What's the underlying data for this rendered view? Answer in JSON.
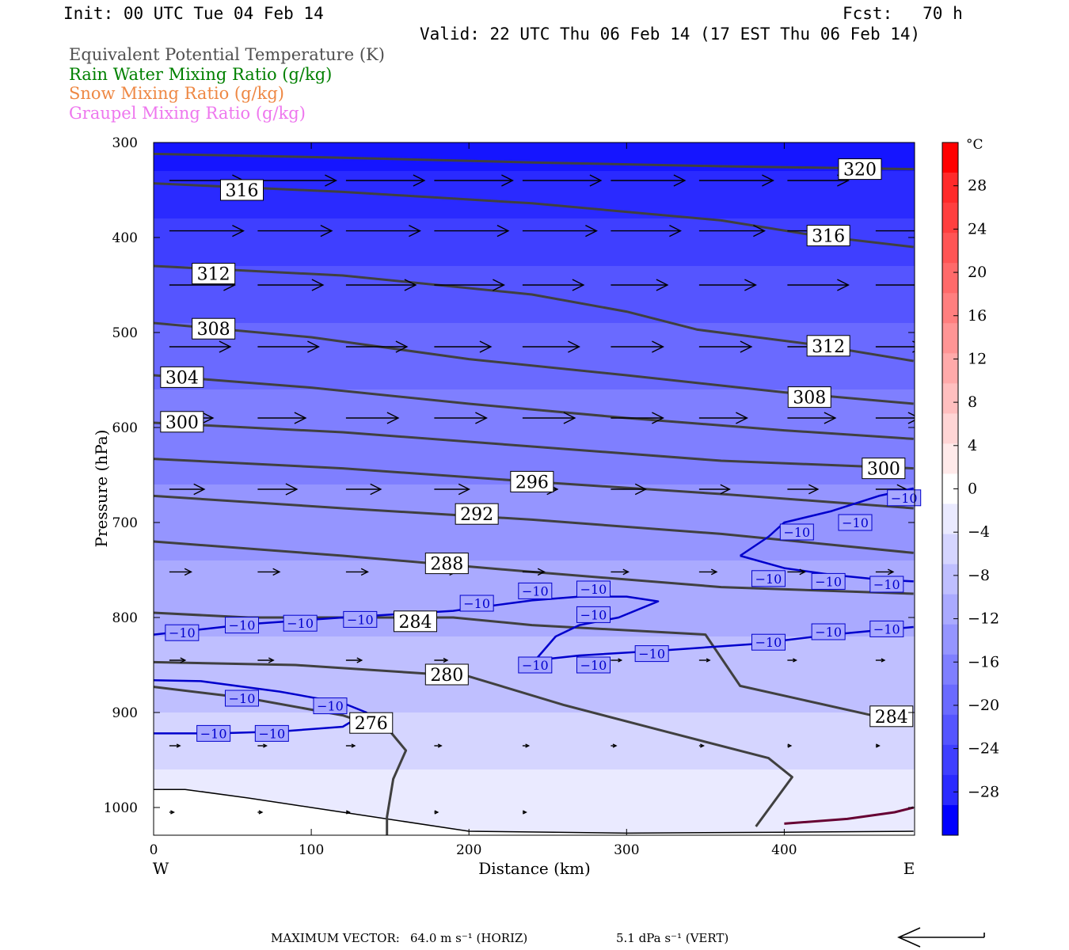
{
  "header": {
    "init": "Init: 00 UTC Tue 04 Feb 14",
    "fcst": "Fcst:   70 h",
    "valid": "Valid: 22 UTC Thu 06 Feb 14 (17 EST Thu 06 Feb 14)"
  },
  "legend": [
    {
      "label": "Equivalent Potential Temperature (K)",
      "color": "#505050"
    },
    {
      "label": "Rain Water Mixing Ratio (g/kg)",
      "color": "#008000"
    },
    {
      "label": "Snow Mixing Ratio (g/kg)",
      "color": "#ee8844"
    },
    {
      "label": "Graupel Mixing Ratio (g/kg)",
      "color": "#ee77ee"
    }
  ],
  "footer": {
    "label": "MAXIMUM VECTOR:",
    "horiz": "64.0 m s⁻¹ (HORIZ)",
    "vert": "5.1 dPa s⁻¹ (VERT)"
  },
  "chart_data": {
    "type": "cross-section",
    "xlabel": "Distance (km)",
    "ylabel": "Pressure (hPa)",
    "x_ticks": [
      0,
      100,
      200,
      300,
      400
    ],
    "y_ticks": [
      300,
      400,
      500,
      600,
      700,
      800,
      900,
      1000
    ],
    "xlim": [
      0,
      482
    ],
    "ylim": [
      300,
      1030
    ],
    "y_direction": "increasing-downward",
    "x_end_labels": {
      "left": "W",
      "right": "E"
    },
    "colorbar": {
      "unit": "°C",
      "tick_labels": [
        28,
        24,
        20,
        16,
        12,
        8,
        4,
        0,
        -4,
        -8,
        -12,
        -16,
        -20,
        -24,
        -28
      ],
      "range": [
        -32,
        32
      ],
      "colors_top_to_bottom": [
        "#ff0000",
        "#ff2a2a",
        "#ff3f3f",
        "#ff5555",
        "#ff6a6a",
        "#ff7f7f",
        "#ff9595",
        "#ffaaaa",
        "#ffbfbf",
        "#ffd5d5",
        "#ffeaea",
        "#ffffff",
        "#eaeaff",
        "#d5d5ff",
        "#bfbfff",
        "#aaaaff",
        "#9595ff",
        "#7f7fff",
        "#6a6aff",
        "#5555ff",
        "#3f3fff",
        "#2a2aff",
        "#0000ff"
      ]
    },
    "temperature_bands_top_to_bottom": [
      {
        "p_top": 300,
        "p_bottom_west": 330,
        "p_bottom_east": 410,
        "color": "#0000ff"
      },
      {
        "p_top": 330,
        "p_bottom_west": 370,
        "p_bottom_east": 445,
        "color": "#1515ff"
      },
      {
        "p_top": 370,
        "p_bottom_west": 420,
        "p_bottom_east": 490,
        "color": "#2a2aff"
      },
      {
        "p_top": 420,
        "p_bottom_west": 470,
        "p_bottom_east": 540,
        "color": "#3f3fff"
      },
      {
        "p_top": 470,
        "p_bottom_west": 530,
        "p_bottom_east": 590,
        "color": "#5555ff"
      },
      {
        "p_top": 530,
        "p_bottom_west": 600,
        "p_bottom_east": 650,
        "color": "#6a6aff"
      },
      {
        "p_top": 600,
        "p_bottom_west": 700,
        "p_bottom_east": 720,
        "color": "#7f7fff"
      },
      {
        "p_top": 700,
        "p_bottom_west": 780,
        "p_bottom_east": 800,
        "color": "#9595ff"
      },
      {
        "p_top": 780,
        "p_bottom_west": 860,
        "p_bottom_east": 860,
        "color": "#aaaaff"
      },
      {
        "p_top": 860,
        "p_bottom_west": 940,
        "p_bottom_east": 920,
        "color": "#bfbfff"
      },
      {
        "p_top": 940,
        "p_bottom_west": 1000,
        "p_bottom_east": 990,
        "color": "#d5d5ff"
      },
      {
        "p_top": 1000,
        "p_bottom_west": 1030,
        "p_bottom_east": 1030,
        "color": "#eaeaff"
      }
    ],
    "theta_e_contours": [
      {
        "label": "320",
        "points": [
          [
            0,
            312
          ],
          [
            120,
            316
          ],
          [
            240,
            321
          ],
          [
            360,
            325
          ],
          [
            482,
            328
          ]
        ]
      },
      {
        "label": "316",
        "points": [
          [
            0,
            343
          ],
          [
            120,
            352
          ],
          [
            240,
            364
          ],
          [
            360,
            382
          ],
          [
            420,
            398
          ],
          [
            482,
            410
          ]
        ]
      },
      {
        "label": "312",
        "points": [
          [
            0,
            430
          ],
          [
            120,
            440
          ],
          [
            240,
            460
          ],
          [
            300,
            478
          ],
          [
            345,
            497
          ],
          [
            420,
            513
          ],
          [
            482,
            530
          ]
        ]
      },
      {
        "label": "308",
        "points": [
          [
            0,
            490
          ],
          [
            100,
            505
          ],
          [
            200,
            528
          ],
          [
            300,
            545
          ],
          [
            400,
            563
          ],
          [
            482,
            575
          ]
        ]
      },
      {
        "label": "304",
        "points": [
          [
            0,
            545
          ],
          [
            100,
            558
          ],
          [
            200,
            575
          ],
          [
            300,
            590
          ],
          [
            400,
            603
          ],
          [
            482,
            612
          ]
        ]
      },
      {
        "label": "300",
        "points": [
          [
            0,
            595
          ],
          [
            120,
            605
          ],
          [
            240,
            620
          ],
          [
            360,
            635
          ],
          [
            482,
            643
          ]
        ]
      },
      {
        "label": "296",
        "points": [
          [
            0,
            633
          ],
          [
            120,
            643
          ],
          [
            240,
            657
          ],
          [
            360,
            670
          ],
          [
            482,
            685
          ]
        ]
      },
      {
        "label": "292",
        "points": [
          [
            0,
            672
          ],
          [
            120,
            685
          ],
          [
            240,
            697
          ],
          [
            360,
            712
          ],
          [
            482,
            732
          ]
        ]
      },
      {
        "label": "288",
        "points": [
          [
            0,
            720
          ],
          [
            120,
            735
          ],
          [
            240,
            752
          ],
          [
            360,
            768
          ],
          [
            482,
            775
          ]
        ]
      },
      {
        "label": "284",
        "points": [
          [
            0,
            795
          ],
          [
            60,
            800
          ],
          [
            190,
            800
          ],
          [
            240,
            808
          ],
          [
            350,
            818
          ],
          [
            372,
            872
          ],
          [
            480,
            912
          ]
        ]
      },
      {
        "label": "280",
        "points": [
          [
            0,
            847
          ],
          [
            90,
            850
          ],
          [
            200,
            862
          ],
          [
            260,
            892
          ],
          [
            320,
            918
          ],
          [
            390,
            948
          ],
          [
            405,
            968
          ],
          [
            382,
            1020
          ]
        ]
      },
      {
        "label": "276",
        "points": [
          [
            0,
            873
          ],
          [
            60,
            885
          ],
          [
            120,
            903
          ],
          [
            150,
            920
          ],
          [
            160,
            940
          ],
          [
            152,
            970
          ],
          [
            148,
            1010
          ],
          [
            148,
            1030
          ]
        ]
      }
    ],
    "theta_e_labels": [
      {
        "text": "320",
        "x": 448,
        "p": 328
      },
      {
        "text": "316",
        "x": 56,
        "p": 350
      },
      {
        "text": "316",
        "x": 428,
        "p": 398
      },
      {
        "text": "312",
        "x": 38,
        "p": 438
      },
      {
        "text": "312",
        "x": 428,
        "p": 514
      },
      {
        "text": "308",
        "x": 38,
        "p": 496
      },
      {
        "text": "308",
        "x": 416,
        "p": 568
      },
      {
        "text": "304",
        "x": 18,
        "p": 547
      },
      {
        "text": "300",
        "x": 18,
        "p": 594
      },
      {
        "text": "300",
        "x": 463,
        "p": 643
      },
      {
        "text": "296",
        "x": 240,
        "p": 657
      },
      {
        "text": "292",
        "x": 205,
        "p": 691
      },
      {
        "text": "288",
        "x": 186,
        "p": 743
      },
      {
        "text": "284",
        "x": 166,
        "p": 804
      },
      {
        "text": "284",
        "x": 468,
        "p": 904
      },
      {
        "text": "280",
        "x": 186,
        "p": 860
      },
      {
        "text": "276",
        "x": 138,
        "p": 911
      }
    ],
    "isotherm_minus10": [
      {
        "points": [
          [
            0,
            818
          ],
          [
            60,
            807
          ],
          [
            120,
            800
          ],
          [
            190,
            793
          ],
          [
            240,
            782
          ],
          [
            270,
            778
          ],
          [
            300,
            778
          ],
          [
            320,
            783
          ],
          [
            295,
            800
          ],
          [
            270,
            808
          ],
          [
            255,
            820
          ],
          [
            242,
            845
          ],
          [
            270,
            840
          ],
          [
            320,
            835
          ],
          [
            380,
            828
          ],
          [
            430,
            818
          ],
          [
            482,
            810
          ]
        ]
      },
      {
        "points": [
          [
            0,
            866
          ],
          [
            30,
            867
          ],
          [
            80,
            878
          ],
          [
            120,
            890
          ],
          [
            135,
            900
          ],
          [
            120,
            915
          ],
          [
            80,
            920
          ],
          [
            40,
            922
          ],
          [
            0,
            922
          ]
        ]
      },
      {
        "points": [
          [
            372,
            735
          ],
          [
            390,
            715
          ],
          [
            400,
            700
          ],
          [
            430,
            688
          ],
          [
            460,
            672
          ],
          [
            482,
            664
          ]
        ]
      },
      {
        "points": [
          [
            372,
            735
          ],
          [
            400,
            748
          ],
          [
            430,
            755
          ],
          [
            460,
            760
          ],
          [
            482,
            762
          ]
        ]
      }
    ],
    "isotherm_labels": [
      {
        "text": "−10",
        "x": 18,
        "p": 816
      },
      {
        "text": "−10",
        "x": 56,
        "p": 808
      },
      {
        "text": "−10",
        "x": 93,
        "p": 806
      },
      {
        "text": "−10",
        "x": 131,
        "p": 802
      },
      {
        "text": "−10",
        "x": 205,
        "p": 785
      },
      {
        "text": "−10",
        "x": 242,
        "p": 772
      },
      {
        "text": "−10",
        "x": 279,
        "p": 770
      },
      {
        "text": "−10",
        "x": 279,
        "p": 797
      },
      {
        "text": "−10",
        "x": 242,
        "p": 850
      },
      {
        "text": "−10",
        "x": 279,
        "p": 850
      },
      {
        "text": "−10",
        "x": 316,
        "p": 838
      },
      {
        "text": "−10",
        "x": 390,
        "p": 826
      },
      {
        "text": "−10",
        "x": 428,
        "p": 815
      },
      {
        "text": "−10",
        "x": 465,
        "p": 812
      },
      {
        "text": "−10",
        "x": 56,
        "p": 885
      },
      {
        "text": "−10",
        "x": 112,
        "p": 893
      },
      {
        "text": "−10",
        "x": 38,
        "p": 922
      },
      {
        "text": "−10",
        "x": 75,
        "p": 922
      },
      {
        "text": "−10",
        "x": 408,
        "p": 710
      },
      {
        "text": "−10",
        "x": 390,
        "p": 759
      },
      {
        "text": "−10",
        "x": 428,
        "p": 762
      },
      {
        "text": "−10",
        "x": 465,
        "p": 765
      },
      {
        "text": "−10",
        "x": 445,
        "p": 700
      },
      {
        "text": "−10",
        "x": 476,
        "p": 674
      }
    ],
    "wind_rows": [
      {
        "p": 340,
        "lengths": [
          0.85,
          0.9,
          0.9,
          0.9,
          0.9,
          0.85,
          0.85,
          0.7
        ]
      },
      {
        "p": 393,
        "lengths": [
          0.85,
          0.85,
          0.85,
          0.85,
          0.85,
          0.8,
          0.75,
          0.7,
          0.6
        ]
      },
      {
        "p": 450,
        "lengths": [
          0.75,
          0.75,
          0.8,
          0.8,
          0.7,
          0.65,
          0.65,
          0.7,
          0.7
        ]
      },
      {
        "p": 515,
        "lengths": [
          0.7,
          0.7,
          0.7,
          0.65,
          0.65,
          0.6,
          0.6,
          0.6,
          0.55
        ]
      },
      {
        "p": 590,
        "lengths": [
          0.5,
          0.55,
          0.6,
          0.6,
          0.6,
          0.6,
          0.55,
          0.55,
          0.5
        ]
      },
      {
        "p": 665,
        "lengths": [
          0.4,
          0.45,
          0.4,
          0.4,
          0.4,
          0.4,
          0.35,
          0.35,
          0.35
        ]
      },
      {
        "p": 752,
        "lengths": [
          0.25,
          0.25,
          0.25,
          0.25,
          0.25,
          0.2,
          0.2,
          0.2,
          0.2
        ]
      },
      {
        "p": 845,
        "lengths": [
          0.18,
          0.18,
          0.18,
          0.15,
          0.15,
          0.12,
          0.12,
          0.1,
          0.1
        ]
      },
      {
        "p": 935,
        "lengths": [
          0.12,
          0.1,
          0.1,
          0.08,
          0.07,
          0.06,
          0.05,
          0.04,
          0.04
        ]
      },
      {
        "p": 1005,
        "lengths": [
          0.05,
          0.05,
          0.04,
          0.04,
          0.04
        ]
      }
    ],
    "ground_pressure": [
      [
        0,
        981
      ],
      [
        20,
        981
      ],
      [
        60,
        990
      ],
      [
        100,
        1000
      ],
      [
        140,
        1010
      ],
      [
        200,
        1025
      ],
      [
        300,
        1027
      ],
      [
        400,
        1026
      ],
      [
        482,
        1025
      ]
    ],
    "precip_contour": {
      "color": "#660033",
      "points": [
        [
          400,
          1017
        ],
        [
          440,
          1012
        ],
        [
          470,
          1005
        ],
        [
          482,
          1000
        ]
      ]
    }
  }
}
